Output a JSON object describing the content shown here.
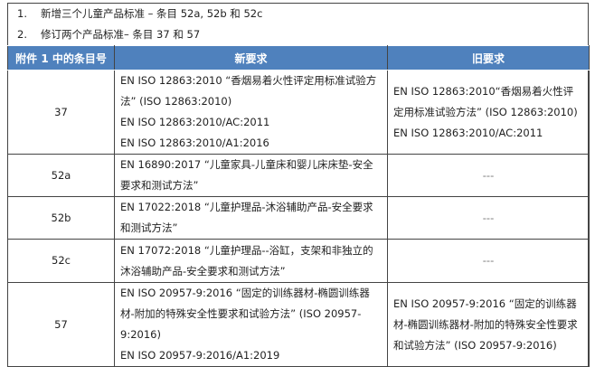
{
  "intro": [
    {
      "num": "1.",
      "text": "新增三个儿童产品标准 – 条目 52a, 52b 和 52c"
    },
    {
      "num": "2.",
      "text": "修订两个产品标准– 条目 37 和 57"
    }
  ],
  "table": {
    "headers": [
      "附件 1 中的条目号",
      "新要求",
      "旧要求"
    ],
    "header_color": "#4f81bd",
    "rows": [
      {
        "item": "37",
        "new": [
          "EN ISO 12863:2010 “香烟易着火性评定用标准试验方法” (ISO 12863:2010)",
          "EN ISO 12863:2010/AC:2011",
          "EN ISO 12863:2010/A1:2016"
        ],
        "old": [
          "EN ISO 12863:2010“香烟易着火性评定用标准试验方法” (ISO 12863:2010)",
          "EN ISO 12863:2010/AC:2011"
        ]
      },
      {
        "item": "52a",
        "new": [
          "EN 16890:2017 “儿童家具-儿童床和婴儿床床垫-安全要求和测试方法”"
        ],
        "old": [
          "---"
        ]
      },
      {
        "item": "52b",
        "new": [
          "EN 17022:2018 “儿童护理品-沐浴辅助产品-安全要求和测试方法”"
        ],
        "old": [
          "---"
        ]
      },
      {
        "item": "52c",
        "new": [
          "EN 17072:2018 “儿童护理品--浴缸，支架和非独立的沐浴辅助产品-安全要求和测试方法”"
        ],
        "old": [
          "---"
        ]
      },
      {
        "item": "57",
        "new": [
          "EN ISO 20957-9:2016 “固定的训练器材-椭圆训练器材-附加的特殊安全性要求和试验方法” (ISO 20957-9:2016)",
          "EN ISO 20957-9:2016/A1:2019"
        ],
        "old": [
          "EN ISO 20957-9:2016 “固定的训练器材-椭圆训练器材-附加的特殊安全性要求和试验方法” (ISO 20957-9:2016)"
        ]
      }
    ]
  }
}
